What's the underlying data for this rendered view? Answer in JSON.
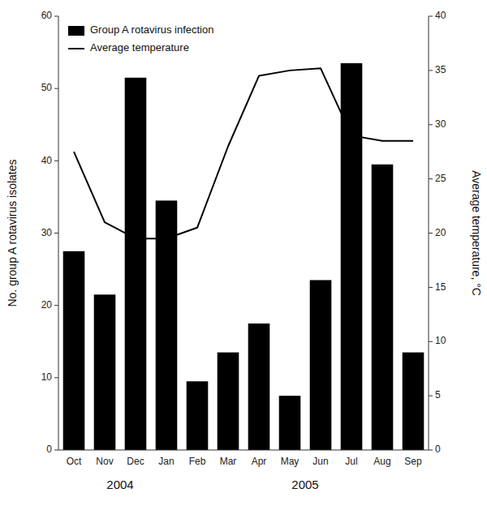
{
  "chart_data": {
    "type": "bar",
    "categories": [
      "Oct",
      "Nov",
      "Dec",
      "Jan",
      "Feb",
      "Mar",
      "Apr",
      "May",
      "Jun",
      "Jul",
      "Aug",
      "Sep"
    ],
    "series": [
      {
        "name": "Group A rotavirus infection",
        "type": "bar",
        "color": "#000000",
        "values": [
          27.5,
          21.5,
          51.5,
          34.5,
          9.5,
          13.5,
          17.5,
          7.5,
          23.5,
          53.5,
          39.5,
          13.5
        ]
      },
      {
        "name": "Average temperature",
        "type": "line",
        "axis": "y2",
        "color": "#000000",
        "values": [
          27.5,
          21.0,
          19.5,
          19.5,
          20.5,
          28.0,
          34.5,
          35.0,
          35.2,
          29.0,
          28.5,
          28.5
        ]
      }
    ],
    "y_label": "No. group A rotavirus isolates",
    "y2_label": "Average temperature, °C",
    "ylim": [
      0,
      60
    ],
    "yticks": [
      0,
      10,
      20,
      30,
      40,
      50,
      60
    ],
    "y2lim": [
      0,
      40
    ],
    "y2ticks": [
      0,
      5,
      10,
      15,
      20,
      25,
      30,
      35,
      40
    ],
    "annotations": [
      {
        "text": "2004",
        "x": 1.5
      },
      {
        "text": "2005",
        "x": 7.5
      }
    ],
    "legend": "upper left",
    "grid": false
  }
}
